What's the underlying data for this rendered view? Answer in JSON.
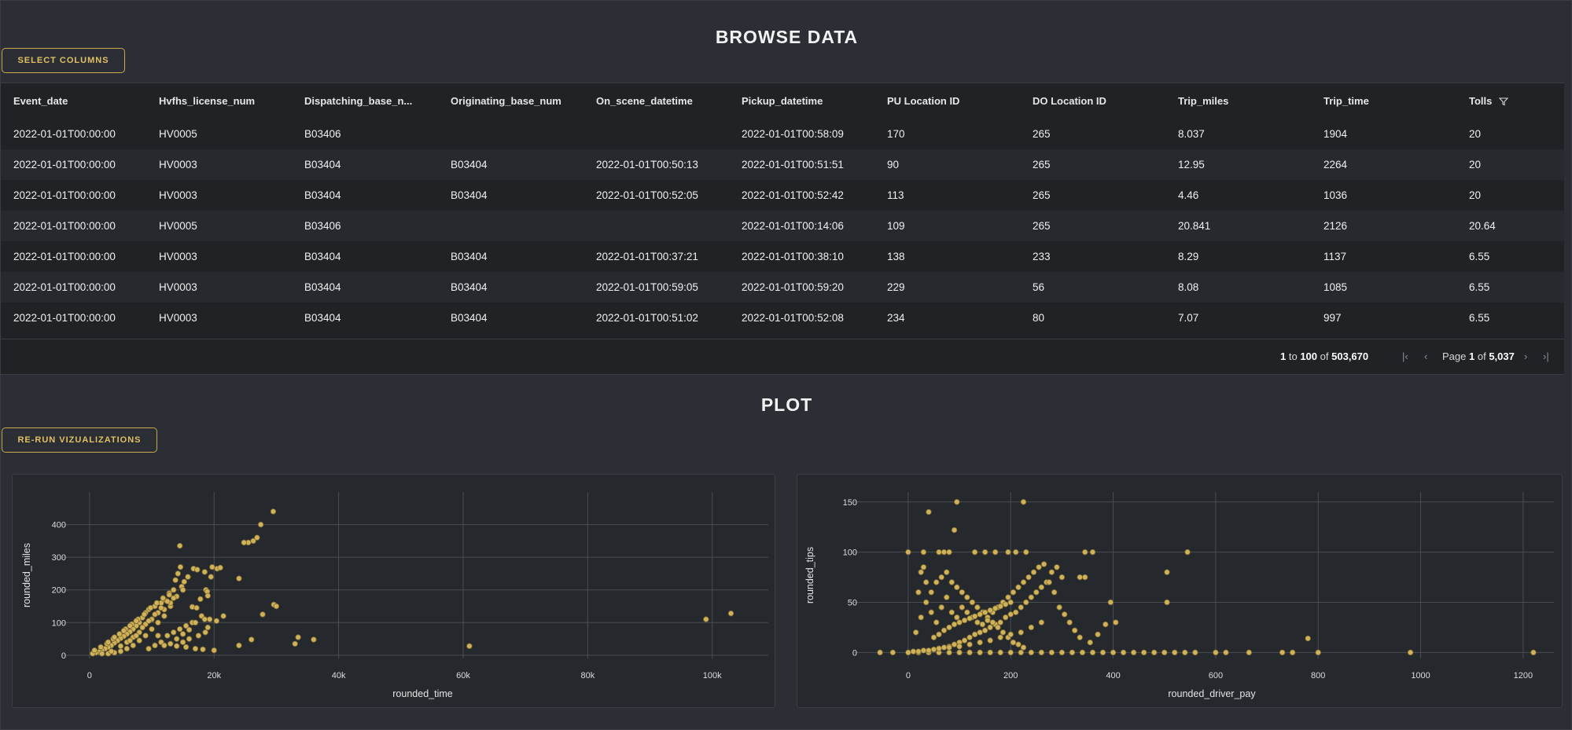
{
  "browse": {
    "title": "BROWSE DATA",
    "select_columns_label": "SELECT COLUMNS",
    "columns": [
      "Event_date",
      "Hvfhs_license_num",
      "Dispatching_base_n...",
      "Originating_base_num",
      "On_scene_datetime",
      "Pickup_datetime",
      "PU Location ID",
      "DO Location ID",
      "Trip_miles",
      "Trip_time",
      "Tolls"
    ],
    "rows": [
      [
        "2022-01-01T00:00:00",
        "HV0005",
        "B03406",
        "",
        "",
        "2022-01-01T00:58:09",
        "170",
        "265",
        "8.037",
        "1904",
        "20"
      ],
      [
        "2022-01-01T00:00:00",
        "HV0003",
        "B03404",
        "B03404",
        "2022-01-01T00:50:13",
        "2022-01-01T00:51:51",
        "90",
        "265",
        "12.95",
        "2264",
        "20"
      ],
      [
        "2022-01-01T00:00:00",
        "HV0003",
        "B03404",
        "B03404",
        "2022-01-01T00:52:05",
        "2022-01-01T00:52:42",
        "113",
        "265",
        "4.46",
        "1036",
        "20"
      ],
      [
        "2022-01-01T00:00:00",
        "HV0005",
        "B03406",
        "",
        "",
        "2022-01-01T00:14:06",
        "109",
        "265",
        "20.841",
        "2126",
        "20.64"
      ],
      [
        "2022-01-01T00:00:00",
        "HV0003",
        "B03404",
        "B03404",
        "2022-01-01T00:37:21",
        "2022-01-01T00:38:10",
        "138",
        "233",
        "8.29",
        "1137",
        "6.55"
      ],
      [
        "2022-01-01T00:00:00",
        "HV0003",
        "B03404",
        "B03404",
        "2022-01-01T00:59:05",
        "2022-01-01T00:59:20",
        "229",
        "56",
        "8.08",
        "1085",
        "6.55"
      ],
      [
        "2022-01-01T00:00:00",
        "HV0003",
        "B03404",
        "B03404",
        "2022-01-01T00:51:02",
        "2022-01-01T00:52:08",
        "234",
        "80",
        "7.07",
        "997",
        "6.55"
      ]
    ],
    "pager": {
      "from": "1",
      "to_word": "to",
      "to": "100",
      "of_word": "of",
      "total": "503,670",
      "page_word": "Page",
      "page": "1",
      "page_of_word": "of",
      "page_total": "5,037"
    }
  },
  "plot": {
    "title": "PLOT",
    "rerun_label": "RE-RUN VIZUALIZATIONS"
  },
  "colors": {
    "accent": "#e2c062",
    "point": "#cfb25a",
    "background": "#2b2e35",
    "grid": "#4a4d54"
  },
  "icons": [
    "filter-icon",
    "first-page-icon",
    "prev-page-icon",
    "next-page-icon",
    "last-page-icon"
  ],
  "chart_data": [
    {
      "type": "scatter",
      "xlabel": "rounded_time",
      "ylabel": "rounded_miles",
      "xlim": [
        -2000,
        109000
      ],
      "ylim": [
        -10,
        500
      ],
      "xticks": [
        0,
        20000,
        40000,
        60000,
        80000,
        100000
      ],
      "xtick_labels": [
        "0",
        "20k",
        "40k",
        "60k",
        "80k",
        "100k"
      ],
      "yticks": [
        0,
        100,
        200,
        300,
        400
      ],
      "ytick_labels": [
        "0",
        "100",
        "200",
        "300",
        "400"
      ],
      "grid": true,
      "points": [
        [
          14500,
          335
        ],
        [
          29500,
          440
        ],
        [
          27500,
          400
        ],
        [
          25500,
          345
        ],
        [
          26300,
          350
        ],
        [
          26900,
          360
        ],
        [
          24000,
          235
        ],
        [
          24800,
          345
        ],
        [
          29600,
          155
        ],
        [
          30000,
          150
        ],
        [
          27800,
          125
        ],
        [
          16700,
          265
        ],
        [
          17300,
          262
        ],
        [
          18500,
          255
        ],
        [
          19700,
          270
        ],
        [
          19500,
          240
        ],
        [
          18700,
          200
        ],
        [
          18900,
          195
        ],
        [
          17800,
          172
        ],
        [
          19000,
          182
        ],
        [
          16500,
          148
        ],
        [
          17200,
          145
        ],
        [
          18000,
          120
        ],
        [
          18500,
          110
        ],
        [
          19300,
          110
        ],
        [
          20400,
          105
        ],
        [
          21500,
          120
        ],
        [
          19000,
          85
        ],
        [
          18600,
          70
        ],
        [
          17500,
          60
        ],
        [
          16000,
          50
        ],
        [
          15000,
          40
        ],
        [
          14000,
          28
        ],
        [
          15500,
          25
        ],
        [
          17000,
          20
        ],
        [
          18200,
          18
        ],
        [
          20000,
          15
        ],
        [
          24000,
          30
        ],
        [
          26000,
          48
        ],
        [
          33000,
          35
        ],
        [
          33500,
          55
        ],
        [
          36000,
          48
        ],
        [
          61000,
          28
        ],
        [
          99000,
          110
        ],
        [
          103000,
          128
        ],
        [
          20500,
          265
        ],
        [
          21000,
          268
        ],
        [
          15800,
          240
        ],
        [
          15200,
          225
        ],
        [
          14800,
          210
        ],
        [
          13500,
          200
        ],
        [
          12800,
          190
        ],
        [
          12000,
          170
        ],
        [
          11500,
          160
        ],
        [
          10500,
          150
        ],
        [
          9500,
          140
        ],
        [
          9000,
          130
        ],
        [
          8500,
          115
        ],
        [
          8000,
          100
        ],
        [
          7500,
          90
        ],
        [
          7000,
          80
        ],
        [
          6500,
          72
        ],
        [
          6000,
          65
        ],
        [
          5500,
          58
        ],
        [
          5000,
          52
        ],
        [
          4500,
          45
        ],
        [
          4000,
          38
        ],
        [
          3500,
          30
        ],
        [
          3000,
          25
        ],
        [
          2500,
          20
        ],
        [
          2000,
          15
        ],
        [
          1500,
          10
        ],
        [
          1000,
          8
        ],
        [
          500,
          5
        ],
        [
          800,
          15
        ],
        [
          1800,
          25
        ],
        [
          2800,
          35
        ],
        [
          3800,
          50
        ],
        [
          4800,
          65
        ],
        [
          5800,
          80
        ],
        [
          6800,
          95
        ],
        [
          7800,
          110
        ],
        [
          8800,
          125
        ],
        [
          9800,
          145
        ],
        [
          10800,
          160
        ],
        [
          11800,
          175
        ],
        [
          12800,
          185
        ],
        [
          13800,
          230
        ],
        [
          14200,
          250
        ],
        [
          14600,
          270
        ],
        [
          13000,
          150
        ],
        [
          12000,
          120
        ],
        [
          11000,
          100
        ],
        [
          10000,
          80
        ],
        [
          9000,
          60
        ],
        [
          8000,
          45
        ],
        [
          7000,
          30
        ],
        [
          6000,
          20
        ],
        [
          5000,
          12
        ],
        [
          4000,
          8
        ],
        [
          3000,
          5
        ],
        [
          12500,
          60
        ],
        [
          13500,
          70
        ],
        [
          14500,
          80
        ],
        [
          15500,
          90
        ],
        [
          16500,
          100
        ],
        [
          11500,
          40
        ],
        [
          10500,
          30
        ],
        [
          9500,
          20
        ],
        [
          12000,
          30
        ],
        [
          13000,
          35
        ],
        [
          14000,
          50
        ],
        [
          15000,
          65
        ],
        [
          16000,
          78
        ],
        [
          17000,
          100
        ],
        [
          11000,
          60
        ],
        [
          9000,
          95
        ],
        [
          10000,
          110
        ],
        [
          11000,
          130
        ],
        [
          12000,
          140
        ],
        [
          13000,
          160
        ],
        [
          14000,
          180
        ],
        [
          15000,
          200
        ],
        [
          6000,
          40
        ],
        [
          7000,
          55
        ],
        [
          8000,
          70
        ],
        [
          8500,
          85
        ],
        [
          9500,
          105
        ],
        [
          10500,
          125
        ],
        [
          11500,
          145
        ],
        [
          12500,
          165
        ],
        [
          13500,
          175
        ],
        [
          2000,
          5
        ],
        [
          3500,
          12
        ],
        [
          5000,
          28
        ],
        [
          6500,
          45
        ],
        [
          7500,
          60
        ],
        [
          3000,
          40
        ],
        [
          4000,
          55
        ],
        [
          5500,
          75
        ],
        [
          6500,
          90
        ],
        [
          7500,
          105
        ]
      ]
    },
    {
      "type": "scatter",
      "xlabel": "rounded_driver_pay",
      "ylabel": "rounded_tips",
      "xlim": [
        -75,
        1260
      ],
      "ylim": [
        -6,
        160
      ],
      "xticks": [
        0,
        200,
        400,
        600,
        800,
        1000,
        1200
      ],
      "xtick_labels": [
        "0",
        "200",
        "400",
        "600",
        "800",
        "1000",
        "1200"
      ],
      "yticks": [
        0,
        50,
        100,
        150
      ],
      "ytick_labels": [
        "0",
        "50",
        "100",
        "150"
      ],
      "grid": true,
      "points": [
        [
          -55,
          0
        ],
        [
          -30,
          0
        ],
        [
          0,
          0
        ],
        [
          20,
          0
        ],
        [
          40,
          0
        ],
        [
          60,
          0
        ],
        [
          80,
          0
        ],
        [
          100,
          0
        ],
        [
          120,
          0
        ],
        [
          140,
          0
        ],
        [
          160,
          0
        ],
        [
          180,
          0
        ],
        [
          200,
          0
        ],
        [
          220,
          0
        ],
        [
          240,
          0
        ],
        [
          260,
          0
        ],
        [
          280,
          0
        ],
        [
          300,
          0
        ],
        [
          320,
          0
        ],
        [
          340,
          0
        ],
        [
          360,
          0
        ],
        [
          380,
          0
        ],
        [
          400,
          0
        ],
        [
          420,
          0
        ],
        [
          440,
          0
        ],
        [
          460,
          0
        ],
        [
          480,
          0
        ],
        [
          500,
          0
        ],
        [
          520,
          0
        ],
        [
          540,
          0
        ],
        [
          560,
          0
        ],
        [
          600,
          0
        ],
        [
          620,
          0
        ],
        [
          665,
          0
        ],
        [
          730,
          0
        ],
        [
          750,
          0
        ],
        [
          800,
          0
        ],
        [
          980,
          0
        ],
        [
          1220,
          0
        ],
        [
          780,
          14
        ],
        [
          505,
          80
        ],
        [
          505,
          50
        ],
        [
          545,
          100
        ],
        [
          360,
          100
        ],
        [
          345,
          100
        ],
        [
          395,
          50
        ],
        [
          405,
          30
        ],
        [
          345,
          75
        ],
        [
          335,
          75
        ],
        [
          385,
          28
        ],
        [
          370,
          18
        ],
        [
          355,
          10
        ],
        [
          40,
          140
        ],
        [
          95,
          150
        ],
        [
          225,
          150
        ],
        [
          90,
          122
        ],
        [
          0,
          100
        ],
        [
          30,
          100
        ],
        [
          60,
          100
        ],
        [
          70,
          100
        ],
        [
          80,
          100
        ],
        [
          130,
          100
        ],
        [
          150,
          100
        ],
        [
          170,
          100
        ],
        [
          195,
          100
        ],
        [
          210,
          100
        ],
        [
          230,
          100
        ],
        [
          290,
          85
        ],
        [
          280,
          80
        ],
        [
          300,
          75
        ],
        [
          270,
          70
        ],
        [
          260,
          65
        ],
        [
          250,
          60
        ],
        [
          240,
          55
        ],
        [
          230,
          50
        ],
        [
          220,
          45
        ],
        [
          210,
          40
        ],
        [
          200,
          38
        ],
        [
          190,
          35
        ],
        [
          180,
          30
        ],
        [
          170,
          28
        ],
        [
          160,
          25
        ],
        [
          150,
          22
        ],
        [
          140,
          20
        ],
        [
          130,
          18
        ],
        [
          120,
          15
        ],
        [
          110,
          12
        ],
        [
          100,
          10
        ],
        [
          90,
          8
        ],
        [
          80,
          6
        ],
        [
          70,
          5
        ],
        [
          60,
          4
        ],
        [
          50,
          3
        ],
        [
          40,
          2
        ],
        [
          30,
          2
        ],
        [
          20,
          1
        ],
        [
          10,
          1
        ],
        [
          15,
          20
        ],
        [
          25,
          35
        ],
        [
          35,
          50
        ],
        [
          45,
          60
        ],
        [
          55,
          70
        ],
        [
          65,
          75
        ],
        [
          75,
          80
        ],
        [
          85,
          70
        ],
        [
          95,
          65
        ],
        [
          105,
          60
        ],
        [
          115,
          55
        ],
        [
          125,
          50
        ],
        [
          135,
          45
        ],
        [
          145,
          40
        ],
        [
          155,
          35
        ],
        [
          165,
          30
        ],
        [
          175,
          25
        ],
        [
          185,
          20
        ],
        [
          195,
          15
        ],
        [
          205,
          10
        ],
        [
          215,
          8
        ],
        [
          225,
          5
        ],
        [
          20,
          60
        ],
        [
          25,
          80
        ],
        [
          30,
          85
        ],
        [
          35,
          70
        ],
        [
          45,
          40
        ],
        [
          55,
          30
        ],
        [
          65,
          45
        ],
        [
          75,
          55
        ],
        [
          85,
          40
        ],
        [
          95,
          35
        ],
        [
          105,
          45
        ],
        [
          115,
          40
        ],
        [
          125,
          35
        ],
        [
          135,
          30
        ],
        [
          145,
          28
        ],
        [
          155,
          32
        ],
        [
          165,
          40
        ],
        [
          175,
          45
        ],
        [
          185,
          50
        ],
        [
          195,
          55
        ],
        [
          205,
          60
        ],
        [
          215,
          65
        ],
        [
          225,
          70
        ],
        [
          235,
          75
        ],
        [
          245,
          80
        ],
        [
          255,
          85
        ],
        [
          265,
          88
        ],
        [
          275,
          70
        ],
        [
          285,
          60
        ],
        [
          295,
          45
        ],
        [
          305,
          38
        ],
        [
          315,
          30
        ],
        [
          325,
          22
        ],
        [
          335,
          15
        ],
        [
          260,
          30
        ],
        [
          240,
          25
        ],
        [
          220,
          20
        ],
        [
          200,
          18
        ],
        [
          180,
          15
        ],
        [
          160,
          12
        ],
        [
          140,
          10
        ],
        [
          120,
          8
        ],
        [
          100,
          6
        ],
        [
          80,
          5
        ],
        [
          50,
          15
        ],
        [
          60,
          18
        ],
        [
          70,
          22
        ],
        [
          80,
          25
        ],
        [
          90,
          28
        ],
        [
          100,
          30
        ],
        [
          110,
          32
        ],
        [
          120,
          34
        ],
        [
          130,
          36
        ],
        [
          140,
          38
        ],
        [
          150,
          40
        ],
        [
          160,
          42
        ],
        [
          170,
          44
        ],
        [
          180,
          46
        ],
        [
          190,
          48
        ],
        [
          200,
          50
        ]
      ]
    }
  ]
}
